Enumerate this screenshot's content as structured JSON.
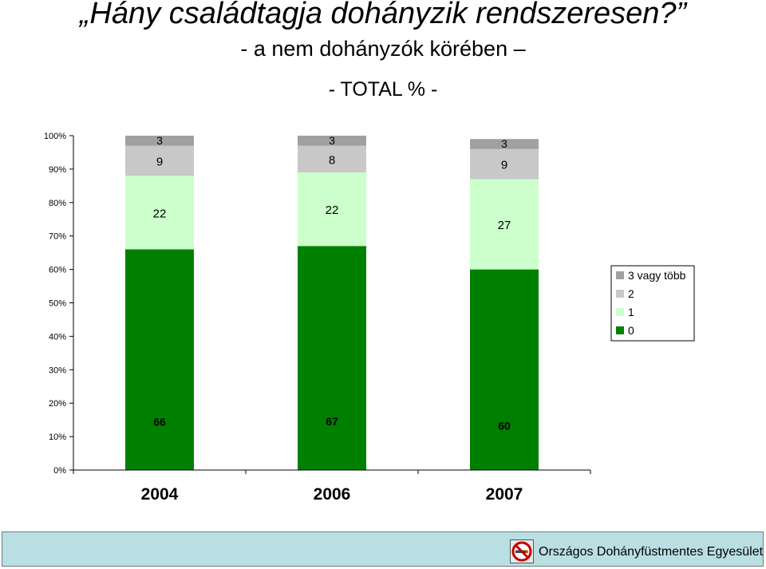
{
  "header": {
    "title": "„Hány családtagja dohányzik rendszeresen?”",
    "subtitle": "-  a nem dohányzók körében –",
    "subtitle2": "- TOTAL % -"
  },
  "chart_data": {
    "type": "bar",
    "stacked": true,
    "categories": [
      "2004",
      "2006",
      "2007"
    ],
    "series": [
      {
        "name": "0",
        "values": [
          66,
          67,
          60
        ],
        "color": "#008000"
      },
      {
        "name": "1",
        "values": [
          22,
          22,
          27
        ],
        "color": "#ccffcc"
      },
      {
        "name": "2",
        "values": [
          9,
          8,
          9
        ],
        "color": "#c8c8c8"
      },
      {
        "name": "3 vagy több",
        "values": [
          3,
          3,
          3
        ],
        "color": "#a0a0a0"
      }
    ],
    "ylim": [
      0,
      100
    ],
    "yticks": [
      "0%",
      "10%",
      "20%",
      "30%",
      "40%",
      "50%",
      "60%",
      "70%",
      "80%",
      "90%",
      "100%"
    ],
    "legend_order": [
      "3 vagy több",
      "2",
      "1",
      "0"
    ],
    "legend_position": "right",
    "grid": false
  },
  "footer": {
    "org_name": "Országos Dohányfüstmentes Egyesület",
    "logo_icon": "no-smoking-icon"
  }
}
